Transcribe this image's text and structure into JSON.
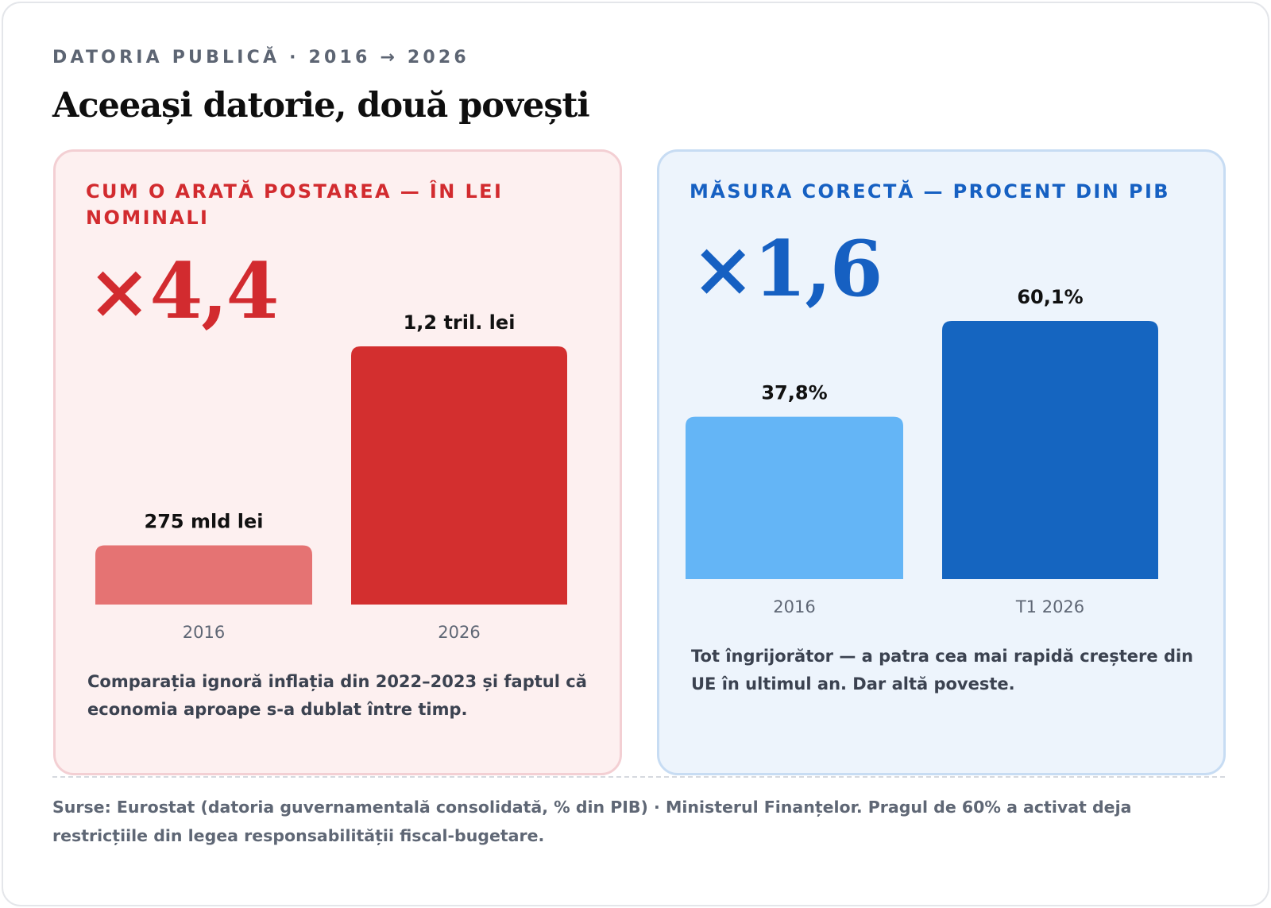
{
  "header": {
    "kicker": "DATORIA PUBLICĂ · 2016 → 2026",
    "title": "Aceeași datorie, două povești"
  },
  "panels": [
    {
      "heading": "CUM O ARATĂ POSTAREA — ÎN LEI NOMINALI",
      "multiplier": "×4,4",
      "note": "Comparația ignoră inflația din 2022–2023 și faptul că economia aproape s-a dublat între timp.",
      "color_light": "#e57373",
      "color_dark": "#d32f2f"
    },
    {
      "heading": "MĂSURA CORECTĂ — PROCENT DIN PIB",
      "multiplier": "×1,6",
      "note": "Tot îngrijorător — a patra cea mai rapidă creștere din UE în ultimul an. Dar altă poveste.",
      "color_light": "#64b5f6",
      "color_dark": "#1565c0"
    }
  ],
  "chart_data": [
    {
      "type": "bar",
      "categories": [
        "2016",
        "2026"
      ],
      "values": [
        275,
        1200
      ],
      "value_labels": [
        "275 mld lei",
        "1,2 tril. lei"
      ],
      "unit": "mld lei",
      "colors": [
        "#e57373",
        "#d32f2f"
      ],
      "ylim": [
        0,
        1200
      ],
      "grid": false
    },
    {
      "type": "bar",
      "categories": [
        "2016",
        "T1 2026"
      ],
      "values": [
        37.8,
        60.1
      ],
      "value_labels": [
        "37,8%",
        "60,1%"
      ],
      "unit": "% din PIB",
      "colors": [
        "#64b5f6",
        "#1565c0"
      ],
      "ylim": [
        0,
        60.1
      ],
      "grid": false
    }
  ],
  "footer": {
    "sources": "Surse: Eurostat (datoria guvernamentală consolidată, % din PIB) · Ministerul Finanțelor. Pragul de 60% a activat deja restricțiile din legea responsabilității fiscal-bugetare."
  }
}
